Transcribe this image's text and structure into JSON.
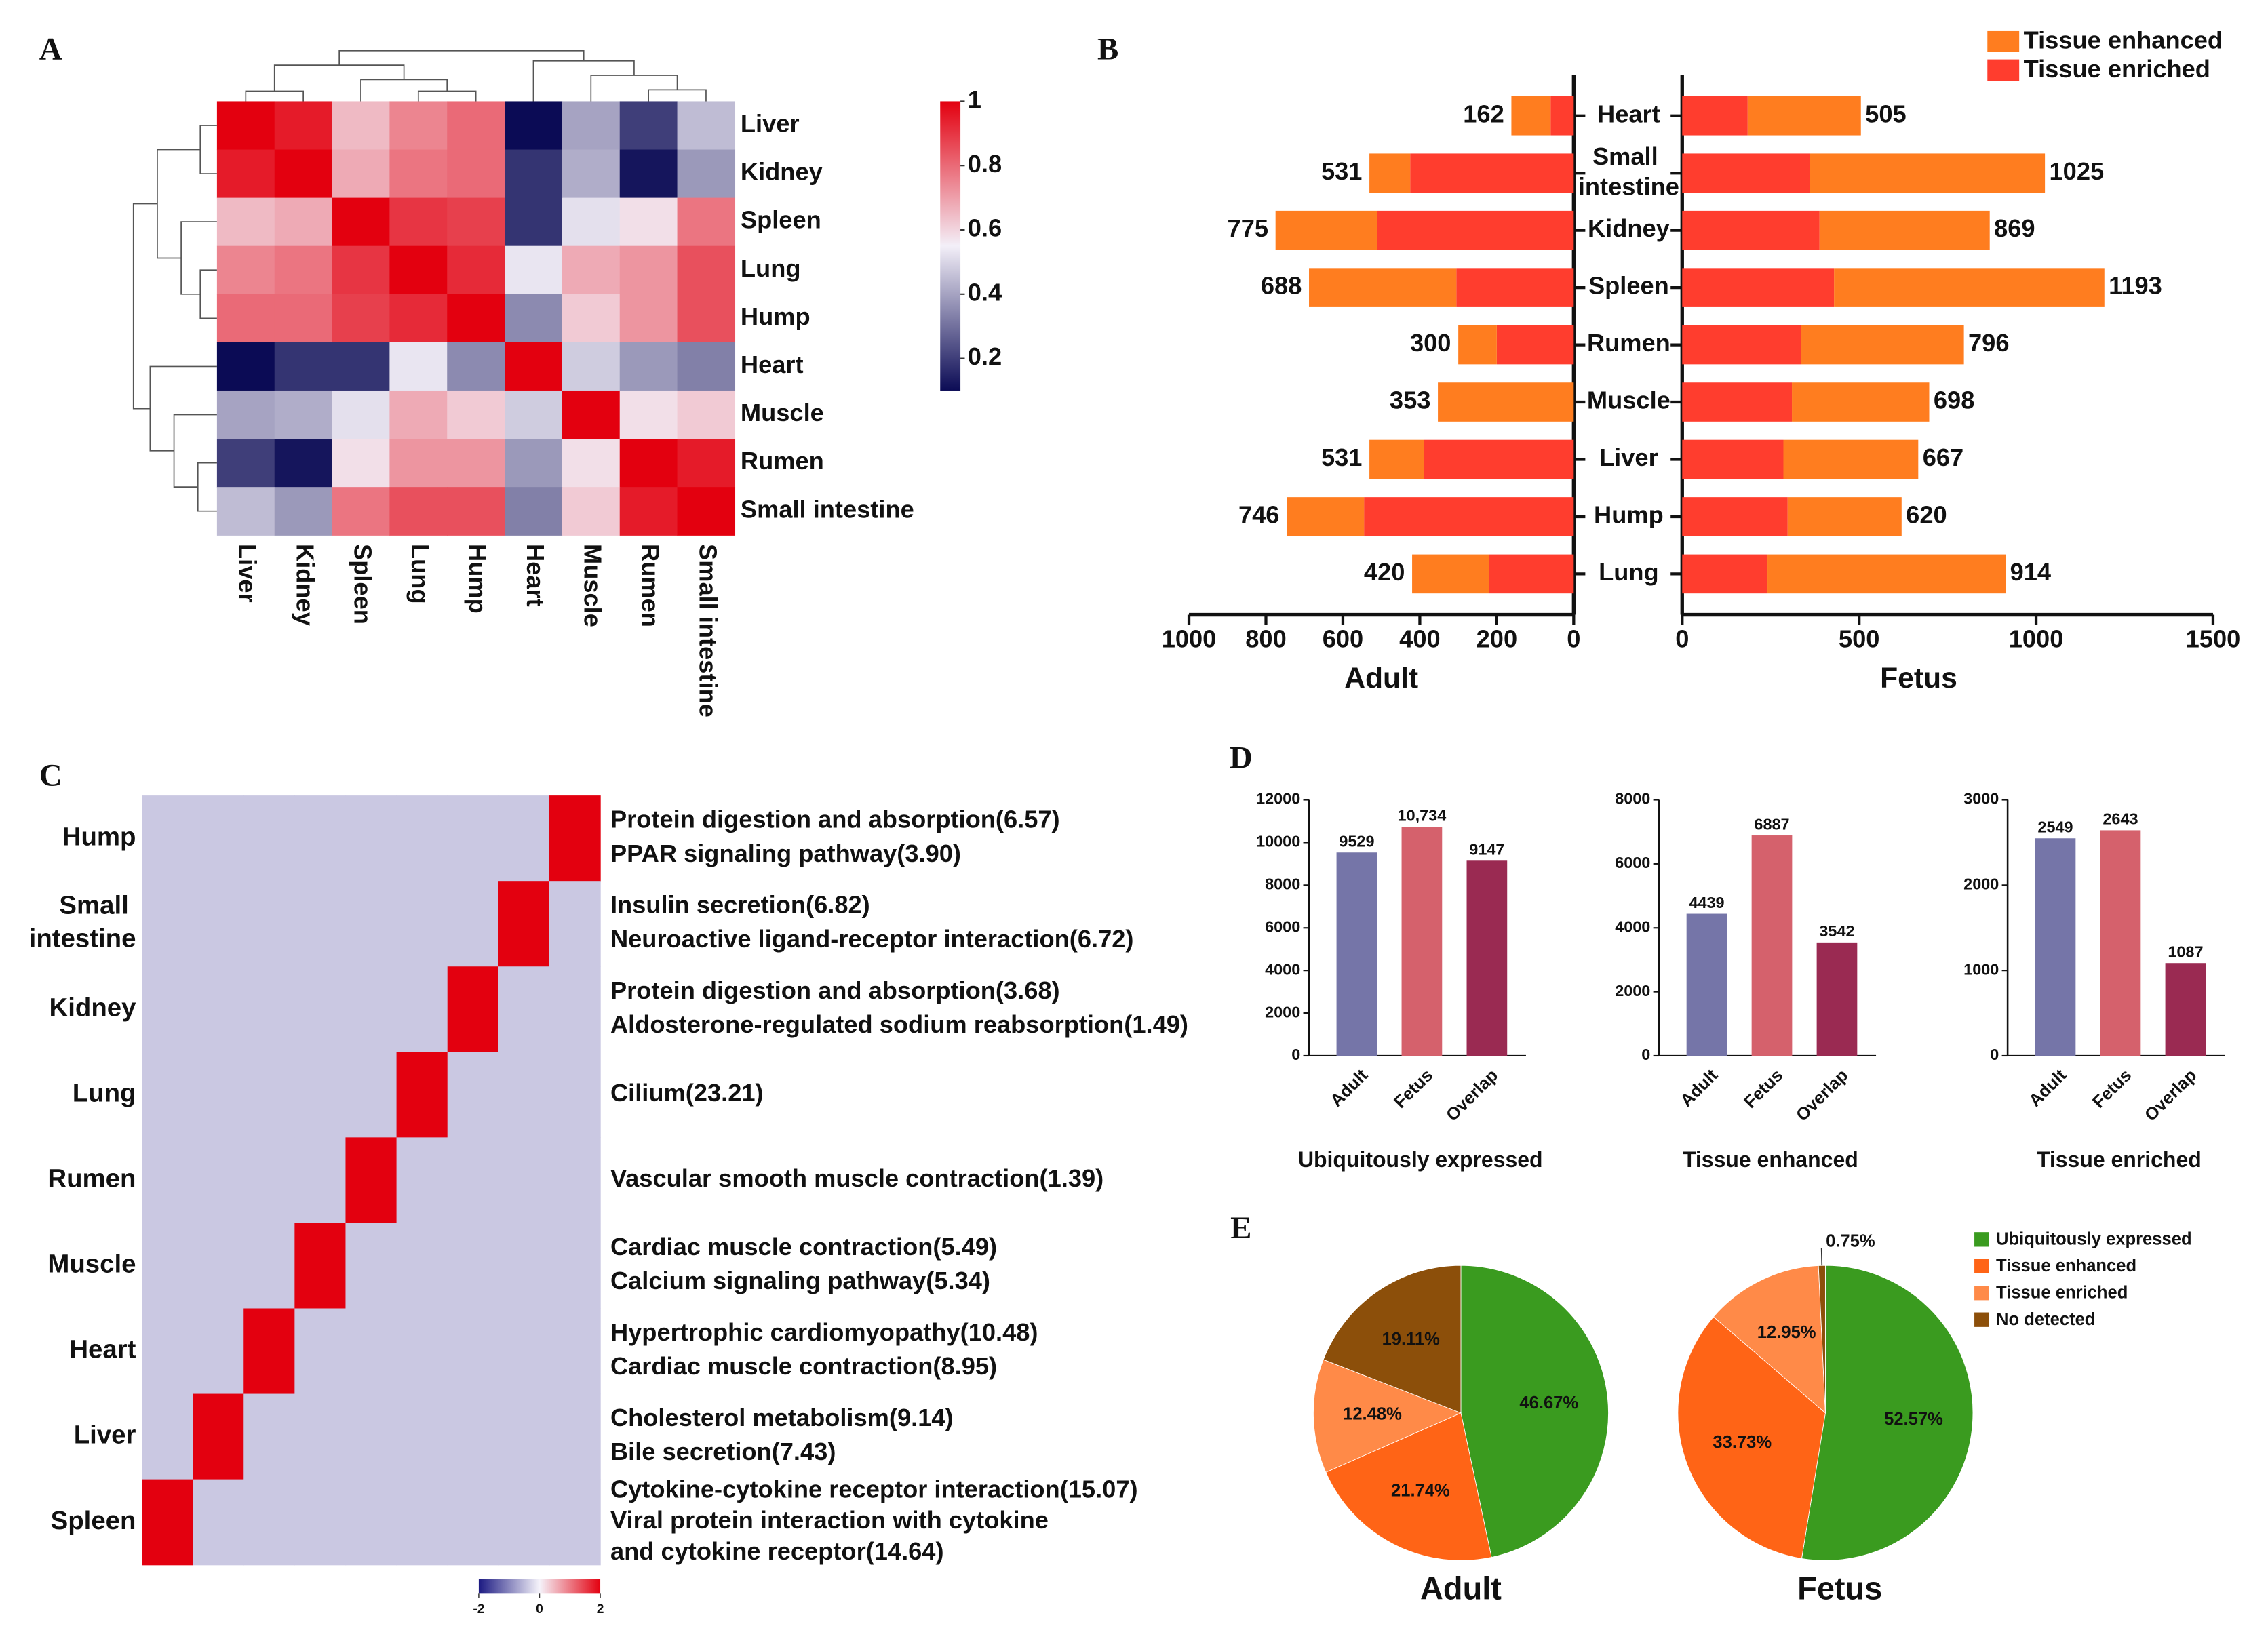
{
  "chart_data": [
    {
      "type": "heatmap",
      "panel": "A",
      "rows": [
        "Liver",
        "Kidney",
        "Spleen",
        "Lung",
        "Hump",
        "Heart",
        "Muscle",
        "Rumen",
        "Small intestine"
      ],
      "columns": [
        "Liver",
        "Kidney",
        "Spleen",
        "Lung",
        "Hump",
        "Heart",
        "Muscle",
        "Rumen",
        "Small intestine"
      ],
      "values": [
        [
          1,
          0.95,
          0.65,
          0.75,
          0.8,
          0.1,
          0.4,
          0.2,
          0.45
        ],
        [
          0.95,
          1,
          0.68,
          0.78,
          0.8,
          0.18,
          0.42,
          0.12,
          0.38
        ],
        [
          0.65,
          0.68,
          1,
          0.9,
          0.88,
          0.18,
          0.52,
          0.58,
          0.78
        ],
        [
          0.75,
          0.78,
          0.9,
          1,
          0.92,
          0.53,
          0.68,
          0.72,
          0.85
        ],
        [
          0.8,
          0.8,
          0.88,
          0.92,
          1,
          0.35,
          0.62,
          0.72,
          0.85
        ],
        [
          0.1,
          0.18,
          0.18,
          0.53,
          0.35,
          1,
          0.48,
          0.38,
          0.33
        ],
        [
          0.4,
          0.42,
          0.52,
          0.68,
          0.62,
          0.48,
          1,
          0.58,
          0.62
        ],
        [
          0.2,
          0.12,
          0.58,
          0.72,
          0.72,
          0.38,
          0.58,
          1,
          0.95
        ],
        [
          0.45,
          0.38,
          0.78,
          0.85,
          0.85,
          0.33,
          0.62,
          0.95,
          1
        ]
      ],
      "zlim": [
        0.1,
        1
      ],
      "zticks": [
        0.2,
        0.4,
        0.6,
        0.8,
        1
      ],
      "colors": [
        "#0b0b55",
        "#f3eff8",
        "#e3000f"
      ]
    },
    {
      "type": "diverging_bar",
      "panel": "B",
      "categories": [
        "Heart",
        "Small intestine",
        "Kidney",
        "Spleen",
        "Rumen",
        "Muscle",
        "Liver",
        "Hump",
        "Lung"
      ],
      "series": [
        {
          "name": "Tissue enhanced",
          "color": "#ff7d1f",
          "values": [
            [
              102,
              106,
              264,
              383,
              100,
              353,
              141,
              201,
              200
            ],
            [
              320,
              665,
              481,
              764,
              461,
              388,
              381,
              322,
              673
            ]
          ]
        },
        {
          "name": "Tissue enriched",
          "color": "#ff3d2e",
          "values": [
            [
              60,
              425,
              511,
              305,
              200,
              0,
              390,
              545,
              220
            ],
            [
              185,
              360,
              388,
              429,
              335,
              310,
              286,
              298,
              241
            ]
          ]
        }
      ],
      "subplots": [
        {
          "xlabel": "Adult",
          "xlim": [
            1000,
            0
          ],
          "xticks": [
            1000,
            800,
            600,
            400,
            200,
            0
          ],
          "totals": [
            162,
            531,
            775,
            688,
            300,
            353,
            531,
            746,
            420
          ]
        },
        {
          "xlabel": "Fetus",
          "xlim": [
            0,
            1500
          ],
          "xticks": [
            0,
            500,
            1000,
            1500
          ],
          "totals": [
            505,
            1025,
            869,
            1193,
            796,
            698,
            667,
            620,
            914
          ]
        }
      ]
    },
    {
      "type": "heatmap_annotated",
      "panel": "C",
      "rows": [
        "Hump",
        "Small intestine",
        "Kidney",
        "Lung",
        "Rumen",
        "Muscle",
        "Heart",
        "Liver",
        "Spleen"
      ],
      "values": [
        [
          -0.4,
          -0.4,
          -0.4,
          -0.4,
          -0.4,
          -0.4,
          -0.4,
          -0.4,
          2
        ],
        [
          -0.4,
          -0.4,
          -0.4,
          -0.4,
          -0.4,
          -0.4,
          -0.4,
          2,
          -0.4
        ],
        [
          -0.4,
          -0.4,
          -0.4,
          -0.4,
          -0.4,
          -0.4,
          2,
          -0.4,
          -0.4
        ],
        [
          -0.4,
          -0.4,
          -0.4,
          -0.4,
          -0.4,
          2,
          -0.4,
          -0.4,
          -0.4
        ],
        [
          -0.4,
          -0.4,
          -0.4,
          -0.4,
          2,
          -0.4,
          -0.4,
          -0.4,
          -0.4
        ],
        [
          -0.4,
          -0.4,
          -0.4,
          2,
          -0.4,
          -0.4,
          -0.4,
          -0.4,
          -0.4
        ],
        [
          -0.4,
          -0.4,
          2,
          -0.4,
          -0.4,
          -0.4,
          -0.4,
          -0.4,
          -0.4
        ],
        [
          -0.4,
          2,
          -0.4,
          -0.4,
          -0.4,
          -0.4,
          -0.4,
          -0.4,
          -0.4
        ],
        [
          2,
          -0.4,
          -0.4,
          -0.4,
          -0.4,
          -0.4,
          -0.4,
          -0.4,
          -0.4
        ]
      ],
      "annotations": [
        [
          "Protein digestion and absorption(6.57)",
          "PPAR signaling pathway(3.90)"
        ],
        [
          "Insulin secretion(6.82)",
          "Neuroactive ligand-receptor interaction(6.72)"
        ],
        [
          "Protein digestion and absorption(3.68)",
          "Aldosterone-regulated sodium reabsorption(1.49)"
        ],
        [
          "Cilium(23.21)"
        ],
        [
          "Vascular smooth muscle contraction(1.39)"
        ],
        [
          "Cardiac muscle contraction(5.49)",
          "Calcium signaling pathway(5.34)"
        ],
        [
          "Hypertrophic cardiomyopathy(10.48)",
          "Cardiac muscle contraction(8.95)"
        ],
        [
          "Cholesterol metabolism(9.14)",
          "Bile secretion(7.43)"
        ],
        [
          "Cytokine-cytokine receptor interaction(15.07)",
          "Viral protein interaction with cytokine",
          "and cytokine receptor(14.64)"
        ]
      ],
      "zlim": [
        -2,
        2
      ],
      "zticks": [
        -2,
        0,
        2
      ],
      "colors": [
        "#1c1a82",
        "#f5f3fa",
        "#e3000f"
      ]
    },
    {
      "type": "bar",
      "panel": "D",
      "colors": [
        "#7575a8",
        "#d5616c",
        "#9a2a52"
      ],
      "subplots": [
        {
          "xlabel": "Ubiquitously expressed",
          "categories": [
            "Adult",
            "Fetus",
            "Overlap"
          ],
          "values": [
            9529,
            10734,
            9147
          ],
          "value_labels": [
            "9529",
            "10,734",
            "9147"
          ],
          "ylim": [
            0,
            12000
          ],
          "yticks": [
            0,
            2000,
            4000,
            6000,
            8000,
            10000,
            12000
          ]
        },
        {
          "xlabel": "Tissue enhanced",
          "categories": [
            "Adult",
            "Fetus",
            "Overlap"
          ],
          "values": [
            4439,
            6887,
            3542
          ],
          "value_labels": [
            "4439",
            "6887",
            "3542"
          ],
          "ylim": [
            0,
            8000
          ],
          "yticks": [
            0,
            2000,
            4000,
            6000,
            8000
          ]
        },
        {
          "xlabel": "Tissue enriched",
          "categories": [
            "Adult",
            "Fetus",
            "Overlap"
          ],
          "values": [
            2549,
            2643,
            1087
          ],
          "value_labels": [
            "2549",
            "2643",
            "1087"
          ],
          "ylim": [
            0,
            3000
          ],
          "yticks": [
            0,
            1000,
            2000,
            3000
          ]
        }
      ]
    },
    {
      "type": "pie",
      "panel": "E",
      "names": [
        "Ubiquitously expressed",
        "Tissue enhanced",
        "Tissue enriched",
        "No detected"
      ],
      "colors": [
        "#3a9b1f",
        "#ff6416",
        "#ff8a48",
        "#8c4f0a"
      ],
      "subplots": [
        {
          "title": "Adult",
          "values": [
            46.67,
            21.74,
            12.48,
            19.11
          ],
          "value_labels": [
            "46.67%",
            "21.74%",
            "12.48%",
            "19.11%"
          ]
        },
        {
          "title": "Fetus",
          "values": [
            52.57,
            33.73,
            12.95,
            0.75
          ],
          "value_labels": [
            "52.57%",
            "33.73%",
            "12.95%",
            "0.75%"
          ]
        }
      ]
    }
  ]
}
